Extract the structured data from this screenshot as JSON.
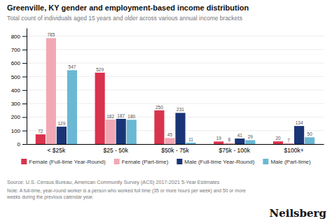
{
  "chart_data": {
    "type": "bar",
    "title": "Greenville, KY gender and employment-based income distribution",
    "subtitle": "Total count of individuals aged 15 years and older across various annual income brackets",
    "categories": [
      "< $25k",
      "$25 - 50k",
      "$50k - 75k",
      "$75k - 100k",
      "$100k+"
    ],
    "series": [
      {
        "name": "Female (Full-time Year-Round)",
        "color": "#d9334d",
        "values": [
          72,
          529,
          250,
          19,
          20
        ]
      },
      {
        "name": "Female (Part-time)",
        "color": "#f2a8b4",
        "values": [
          785,
          182,
          45,
          8,
          7
        ]
      },
      {
        "name": "Male (Full-time Year-Round)",
        "color": "#1a3575",
        "values": [
          129,
          187,
          231,
          41,
          134
        ]
      },
      {
        "name": "Male (Part-time)",
        "color": "#6ab8d4",
        "values": [
          547,
          180,
          11,
          29,
          50
        ]
      }
    ],
    "ylim": [
      0,
      860
    ],
    "yticks": [
      0,
      100,
      200,
      300,
      400,
      500,
      600,
      700,
      800
    ],
    "grid": true,
    "legend": "bottom",
    "data_labels": true,
    "annotations": [
      "Source: U.S. Census Bureau, American Community Survey (ACS) 2017-2021 5-Year Estimates",
      "Note: A full-time, year-round worker is a person who worked full time (35 or more hours per week) and 50 or more weeks during the previous calendar year.",
      "Neilsberg"
    ]
  }
}
